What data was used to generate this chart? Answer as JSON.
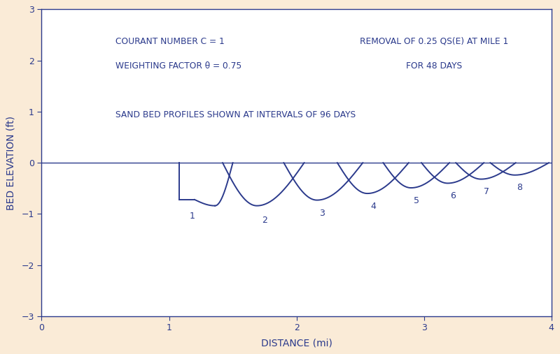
{
  "background_color": "#faebd7",
  "plot_bg_color": "#ffffff",
  "line_color": "#2b3a8c",
  "line_width": 1.4,
  "text1": "COURANT NUMBER C = 1",
  "text2": "WEIGHTING FACTOR θ = 0.75",
  "text3": "SAND BED PROFILES SHOWN AT INTERVALS OF 96 DAYS",
  "text4": "REMOVAL OF 0.25 QS(E) AT MILE 1",
  "text5": "FOR 48 DAYS",
  "xlabel": "DISTANCE (mi)",
  "ylabel": "BED ELEVATION (ft)",
  "xlim": [
    0,
    4
  ],
  "ylim": [
    -3,
    3
  ],
  "xticks": [
    0,
    1,
    2,
    3,
    4
  ],
  "yticks": [
    -3,
    -2,
    -1,
    0,
    1,
    2,
    3
  ],
  "font_color": "#2b3a8c",
  "font_size_label": 10,
  "font_size_tick": 9,
  "font_size_annot": 9
}
